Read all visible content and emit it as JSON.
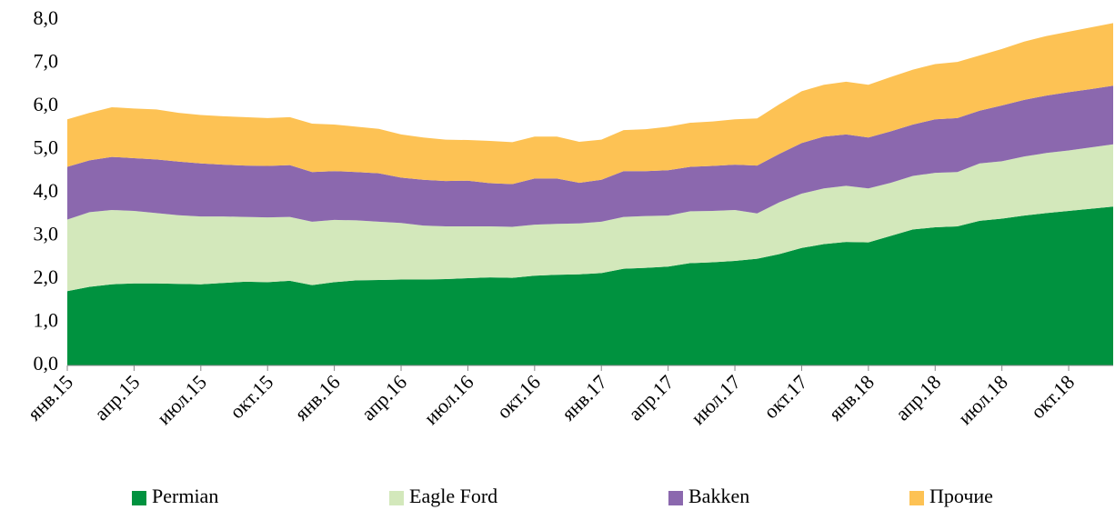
{
  "chart_data": {
    "type": "stacked_area",
    "categories": [
      "янв.15",
      null,
      null,
      "апр.15",
      null,
      null,
      "июл.15",
      null,
      null,
      "окт.15",
      null,
      null,
      "янв.16",
      null,
      null,
      "апр.16",
      null,
      null,
      "июл.16",
      null,
      null,
      "окт.16",
      null,
      null,
      "янв.17",
      null,
      null,
      "апр.17",
      null,
      null,
      "июл.17",
      null,
      null,
      "окт.17",
      null,
      null,
      "янв.18",
      null,
      null,
      "апр.18",
      null,
      null,
      "июл.18",
      null,
      null,
      "окт.18",
      null,
      null
    ],
    "series": [
      {
        "name": "Permian",
        "color": "#00923f",
        "values": [
          1.72,
          1.82,
          1.88,
          1.9,
          1.9,
          1.89,
          1.88,
          1.91,
          1.94,
          1.93,
          1.96,
          1.86,
          1.93,
          1.97,
          1.98,
          1.99,
          1.99,
          2.0,
          2.02,
          2.04,
          2.03,
          2.08,
          2.1,
          2.11,
          2.14,
          2.24,
          2.26,
          2.29,
          2.37,
          2.39,
          2.42,
          2.47,
          2.58,
          2.72,
          2.81,
          2.86,
          2.85,
          3.0,
          3.15,
          3.2,
          3.22,
          3.35,
          3.4,
          3.47,
          3.53,
          3.58,
          3.63,
          3.68
        ]
      },
      {
        "name": "Eagle Ford",
        "color": "#d3e8bb",
        "values": [
          1.66,
          1.73,
          1.72,
          1.68,
          1.63,
          1.59,
          1.57,
          1.54,
          1.5,
          1.5,
          1.48,
          1.47,
          1.44,
          1.39,
          1.35,
          1.31,
          1.25,
          1.22,
          1.2,
          1.18,
          1.18,
          1.18,
          1.18,
          1.18,
          1.19,
          1.2,
          1.2,
          1.18,
          1.2,
          1.19,
          1.18,
          1.05,
          1.2,
          1.26,
          1.29,
          1.3,
          1.25,
          1.23,
          1.24,
          1.26,
          1.26,
          1.33,
          1.33,
          1.37,
          1.39,
          1.4,
          1.42,
          1.44
        ]
      },
      {
        "name": "Bakken",
        "color": "#8b68ae",
        "values": [
          1.22,
          1.2,
          1.23,
          1.22,
          1.24,
          1.24,
          1.23,
          1.2,
          1.19,
          1.19,
          1.2,
          1.15,
          1.13,
          1.12,
          1.12,
          1.05,
          1.06,
          1.05,
          1.06,
          1.0,
          0.99,
          1.07,
          1.05,
          0.94,
          0.97,
          1.06,
          1.04,
          1.05,
          1.03,
          1.04,
          1.05,
          1.11,
          1.12,
          1.17,
          1.2,
          1.19,
          1.18,
          1.19,
          1.19,
          1.24,
          1.25,
          1.22,
          1.29,
          1.31,
          1.33,
          1.35,
          1.35,
          1.36
        ]
      },
      {
        "name": "Прочие",
        "color": "#fdc254",
        "values": [
          1.1,
          1.1,
          1.15,
          1.15,
          1.16,
          1.13,
          1.12,
          1.12,
          1.12,
          1.11,
          1.11,
          1.12,
          1.08,
          1.05,
          1.03,
          1.0,
          0.98,
          0.96,
          0.94,
          0.98,
          0.97,
          0.97,
          0.97,
          0.95,
          0.93,
          0.95,
          0.97,
          1.01,
          1.02,
          1.03,
          1.05,
          1.09,
          1.15,
          1.2,
          1.2,
          1.22,
          1.22,
          1.26,
          1.27,
          1.28,
          1.3,
          1.28,
          1.31,
          1.35,
          1.38,
          1.4,
          1.43,
          1.45
        ]
      }
    ],
    "ylim": [
      0,
      8
    ],
    "yticks": [
      {
        "value": 0,
        "label": "0,0"
      },
      {
        "value": 1,
        "label": "1,0"
      },
      {
        "value": 2,
        "label": "2,0"
      },
      {
        "value": 3,
        "label": "3,0"
      },
      {
        "value": 4,
        "label": "4,0"
      },
      {
        "value": 5,
        "label": "5,0"
      },
      {
        "value": 6,
        "label": "6,0"
      },
      {
        "value": 7,
        "label": "7,0"
      },
      {
        "value": 8,
        "label": "8,0"
      }
    ],
    "legend": "bottom"
  }
}
